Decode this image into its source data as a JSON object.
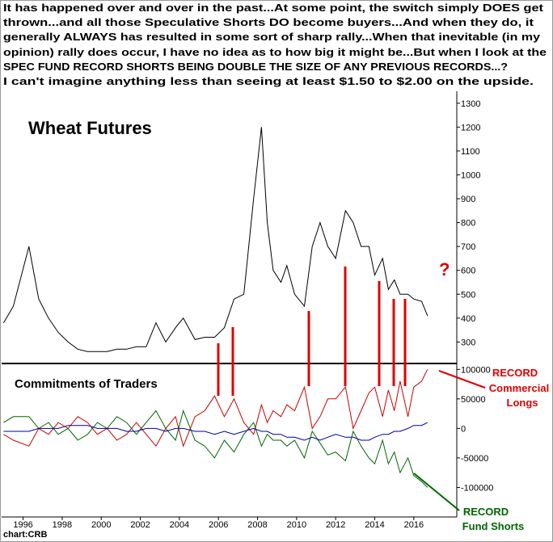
{
  "header": {
    "lines": [
      "It has happened over and over in the past...At some point, the switch simply DOES get",
      "thrown...and all those Speculative Shorts DO become buyers...And when they do, it",
      "generally ALWAYS has resulted in some sort of sharp rally...When that inevitable (in my",
      "opinion) rally does occur, I have no idea as to how big it might be...But when I look at the",
      "SPEC FUND RECORD SHORTS BEING DOUBLE THE SIZE OF ANY PREVIOUS RECORDS...?",
      "I can't imagine anything less than seeing at least $1.50 to $2.00 on the upside."
    ]
  },
  "chart_data": [
    {
      "type": "line",
      "title": "Wheat Futures",
      "annotation": "?",
      "color": "#000000",
      "x": [
        1995.0,
        1995.5,
        1996.3,
        1996.8,
        1997.3,
        1997.8,
        1998.3,
        1998.8,
        1999.3,
        1999.8,
        2000.3,
        2000.8,
        2001.3,
        2001.8,
        2002.3,
        2002.8,
        2003.3,
        2003.8,
        2004.2,
        2004.8,
        2005.3,
        2005.8,
        2006.3,
        2006.8,
        2007.3,
        2007.8,
        2008.2,
        2008.5,
        2008.8,
        2009.2,
        2009.5,
        2009.9,
        2010.4,
        2010.8,
        2011.2,
        2011.6,
        2012.0,
        2012.5,
        2012.9,
        2013.3,
        2013.7,
        2014.0,
        2014.4,
        2014.7,
        2015.0,
        2015.3,
        2015.7,
        2016.0,
        2016.4,
        2016.7
      ],
      "values": [
        380,
        450,
        700,
        480,
        400,
        340,
        300,
        270,
        260,
        260,
        260,
        270,
        270,
        280,
        280,
        380,
        300,
        360,
        400,
        310,
        320,
        320,
        360,
        480,
        500,
        900,
        1200,
        800,
        600,
        550,
        620,
        500,
        450,
        700,
        800,
        700,
        650,
        850,
        800,
        700,
        700,
        580,
        650,
        520,
        560,
        500,
        500,
        480,
        470,
        410
      ],
      "xlim": [
        1994.9,
        2018.2
      ],
      "ylim": [
        210,
        1350
      ],
      "yticks": [
        300,
        400,
        500,
        600,
        700,
        800,
        900,
        1000,
        1100,
        1200,
        1300
      ]
    },
    {
      "type": "line",
      "title": "Commitments of Traders",
      "source": "chart:CRB",
      "annotations": [
        "RECORD",
        "Commercial",
        "Longs",
        "RECORD",
        "Fund Shorts"
      ],
      "x": [
        1995.0,
        1995.5,
        1996.3,
        1996.8,
        1997.3,
        1997.8,
        1998.3,
        1998.8,
        1999.3,
        1999.8,
        2000.3,
        2000.8,
        2001.3,
        2001.8,
        2002.3,
        2002.8,
        2003.3,
        2003.8,
        2004.2,
        2004.8,
        2005.3,
        2005.8,
        2006.3,
        2006.8,
        2007.3,
        2007.8,
        2008.2,
        2008.5,
        2008.8,
        2009.2,
        2009.5,
        2009.9,
        2010.4,
        2010.8,
        2011.2,
        2011.6,
        2012.0,
        2012.5,
        2012.9,
        2013.3,
        2013.7,
        2014.0,
        2014.4,
        2014.7,
        2015.0,
        2015.3,
        2015.7,
        2016.0,
        2016.4,
        2016.7
      ],
      "series": [
        {
          "color": "#cc0000",
          "values": [
            -10000,
            -20000,
            -30000,
            0,
            -10000,
            10000,
            0,
            20000,
            10000,
            -10000,
            0,
            -20000,
            -10000,
            10000,
            -10000,
            -30000,
            0,
            20000,
            -30000,
            20000,
            30000,
            55000,
            20000,
            50000,
            10000,
            -10000,
            40000,
            10000,
            30000,
            20000,
            40000,
            30000,
            70000,
            0,
            20000,
            50000,
            50000,
            70000,
            0,
            30000,
            60000,
            70000,
            20000,
            65000,
            30000,
            80000,
            20000,
            70000,
            80000,
            100000
          ]
        },
        {
          "color": "#006600",
          "values": [
            10000,
            20000,
            20000,
            0,
            10000,
            -10000,
            0,
            -20000,
            -10000,
            10000,
            0,
            20000,
            10000,
            -10000,
            10000,
            30000,
            0,
            -20000,
            30000,
            -20000,
            -30000,
            -50000,
            -20000,
            -40000,
            -10000,
            10000,
            -30000,
            -10000,
            -20000,
            -20000,
            -30000,
            -20000,
            -50000,
            -5000,
            -25000,
            -45000,
            -40000,
            -55000,
            -5000,
            -30000,
            -50000,
            -60000,
            -20000,
            -60000,
            -40000,
            -75000,
            -50000,
            -80000,
            -90000,
            -100000
          ]
        },
        {
          "color": "#000099",
          "values": [
            -5000,
            -5000,
            -5000,
            0,
            0,
            0,
            5000,
            5000,
            5000,
            0,
            0,
            0,
            -5000,
            -5000,
            0,
            0,
            -5000,
            0,
            0,
            -5000,
            -5000,
            -10000,
            -5000,
            -10000,
            -5000,
            0,
            -5000,
            -5000,
            -10000,
            -10000,
            -15000,
            -15000,
            -20000,
            -15000,
            -20000,
            -15000,
            -10000,
            -15000,
            -15000,
            -20000,
            -20000,
            -15000,
            -10000,
            -10000,
            -5000,
            -5000,
            0,
            5000,
            5000,
            10000
          ]
        }
      ],
      "xlim": [
        1994.9,
        2018.2
      ],
      "ylim": [
        -150000,
        110000
      ],
      "yticks": [
        -100000,
        -50000,
        0,
        50000,
        100000
      ],
      "xticks": [
        1996,
        1998,
        2000,
        2002,
        2004,
        2006,
        2008,
        2010,
        2012,
        2014,
        2016
      ]
    }
  ]
}
